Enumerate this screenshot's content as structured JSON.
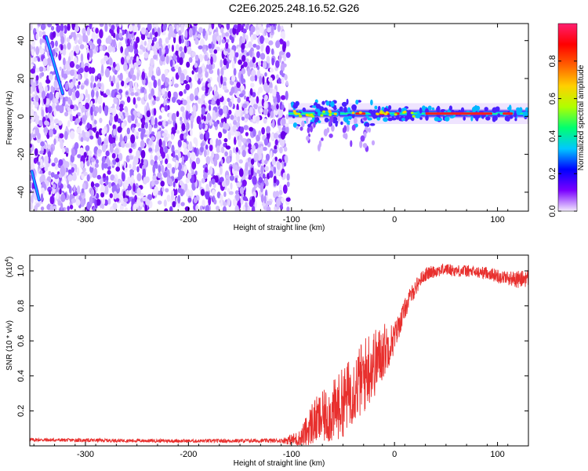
{
  "title": "C2E6.2025.248.16.52.G26",
  "colors": {
    "snr_line": "#e8302e",
    "frame": "#000000",
    "spectro_purple": "#6a00f0"
  },
  "chart_data": [
    {
      "type": "heatmap",
      "name": "spectrogram",
      "xlabel": "Height of straight line (km)",
      "ylabel": "Frequency (Hz)",
      "xlim": [
        -354,
        130
      ],
      "ylim": [
        -50,
        49
      ],
      "xticks": [
        -300,
        -200,
        -100,
        0,
        100
      ],
      "yticks": [
        -40,
        -20,
        0,
        20,
        40
      ],
      "xtick_labels": [
        "-300",
        "-200",
        "-100",
        "0",
        "100"
      ],
      "ytick_labels": [
        "-40",
        "-20",
        "0",
        "20",
        "40"
      ],
      "noise_region_x": [
        -354,
        -103
      ],
      "signal_band": {
        "x": [
          -103,
          130
        ],
        "center_hz": 1.5,
        "width_hz": 5
      },
      "streaks": [
        {
          "x": [
            -338,
            -322
          ],
          "y": [
            42,
            12
          ]
        },
        {
          "x": [
            -352,
            -345
          ],
          "y": [
            -29,
            -44
          ]
        }
      ]
    },
    {
      "type": "colorbar",
      "label": "Normalized spectral amplitude",
      "range": [
        0,
        1
      ],
      "ticks": [
        0.0,
        0.2,
        0.4,
        0.6,
        0.8
      ],
      "tick_labels": [
        "0.0",
        "0.2",
        "0.4",
        "0.6",
        "0.8"
      ],
      "colors": [
        "#f3eafd",
        "#7a00ff",
        "#0000ff",
        "#00c8ff",
        "#00ff70",
        "#b0ff00",
        "#ffd000",
        "#ff6000",
        "#ff0000",
        "#ff2070"
      ]
    },
    {
      "type": "line",
      "name": "snr",
      "xlabel": "Height of straight line (km)",
      "ylabel": "SNR (10 * v/v)",
      "scale_label": "(x10",
      "scale_exp": "4",
      "scale_close": ")",
      "xlim": [
        -354,
        130
      ],
      "ylim": [
        0,
        1.09
      ],
      "xticks": [
        -300,
        -200,
        -100,
        0,
        100
      ],
      "yticks": [
        0.2,
        0.4,
        0.6,
        0.8,
        1.0
      ],
      "xtick_labels": [
        "-300",
        "-200",
        "-100",
        "0",
        "100"
      ],
      "ytick_labels": [
        "0.2",
        "0.4",
        "0.6",
        "0.8",
        "1.0"
      ],
      "series": [
        {
          "name": "SNR",
          "x": [
            -354,
            -300,
            -200,
            -110,
            -92,
            -85,
            -80,
            -70,
            -60,
            -50,
            -40,
            -30,
            -25,
            -20,
            -15,
            -10,
            -5,
            0,
            5,
            10,
            15,
            20,
            25,
            30,
            40,
            50,
            60,
            70,
            80,
            90,
            100,
            110,
            120,
            130
          ],
          "y": [
            0.035,
            0.032,
            0.028,
            0.03,
            0.04,
            0.08,
            0.13,
            0.16,
            0.19,
            0.25,
            0.33,
            0.39,
            0.45,
            0.47,
            0.5,
            0.55,
            0.58,
            0.62,
            0.7,
            0.78,
            0.85,
            0.9,
            0.95,
            0.98,
            1.0,
            1.01,
            1.0,
            1.0,
            0.99,
            0.99,
            0.97,
            0.96,
            0.95,
            0.96
          ],
          "noise": [
            0.01,
            0.01,
            0.01,
            0.012,
            0.05,
            0.1,
            0.13,
            0.15,
            0.18,
            0.2,
            0.2,
            0.22,
            0.22,
            0.2,
            0.18,
            0.16,
            0.12,
            0.09,
            0.07,
            0.06,
            0.05,
            0.05,
            0.04,
            0.04,
            0.035,
            0.035,
            0.035,
            0.035,
            0.035,
            0.035,
            0.04,
            0.04,
            0.05,
            0.05
          ]
        }
      ]
    }
  ]
}
